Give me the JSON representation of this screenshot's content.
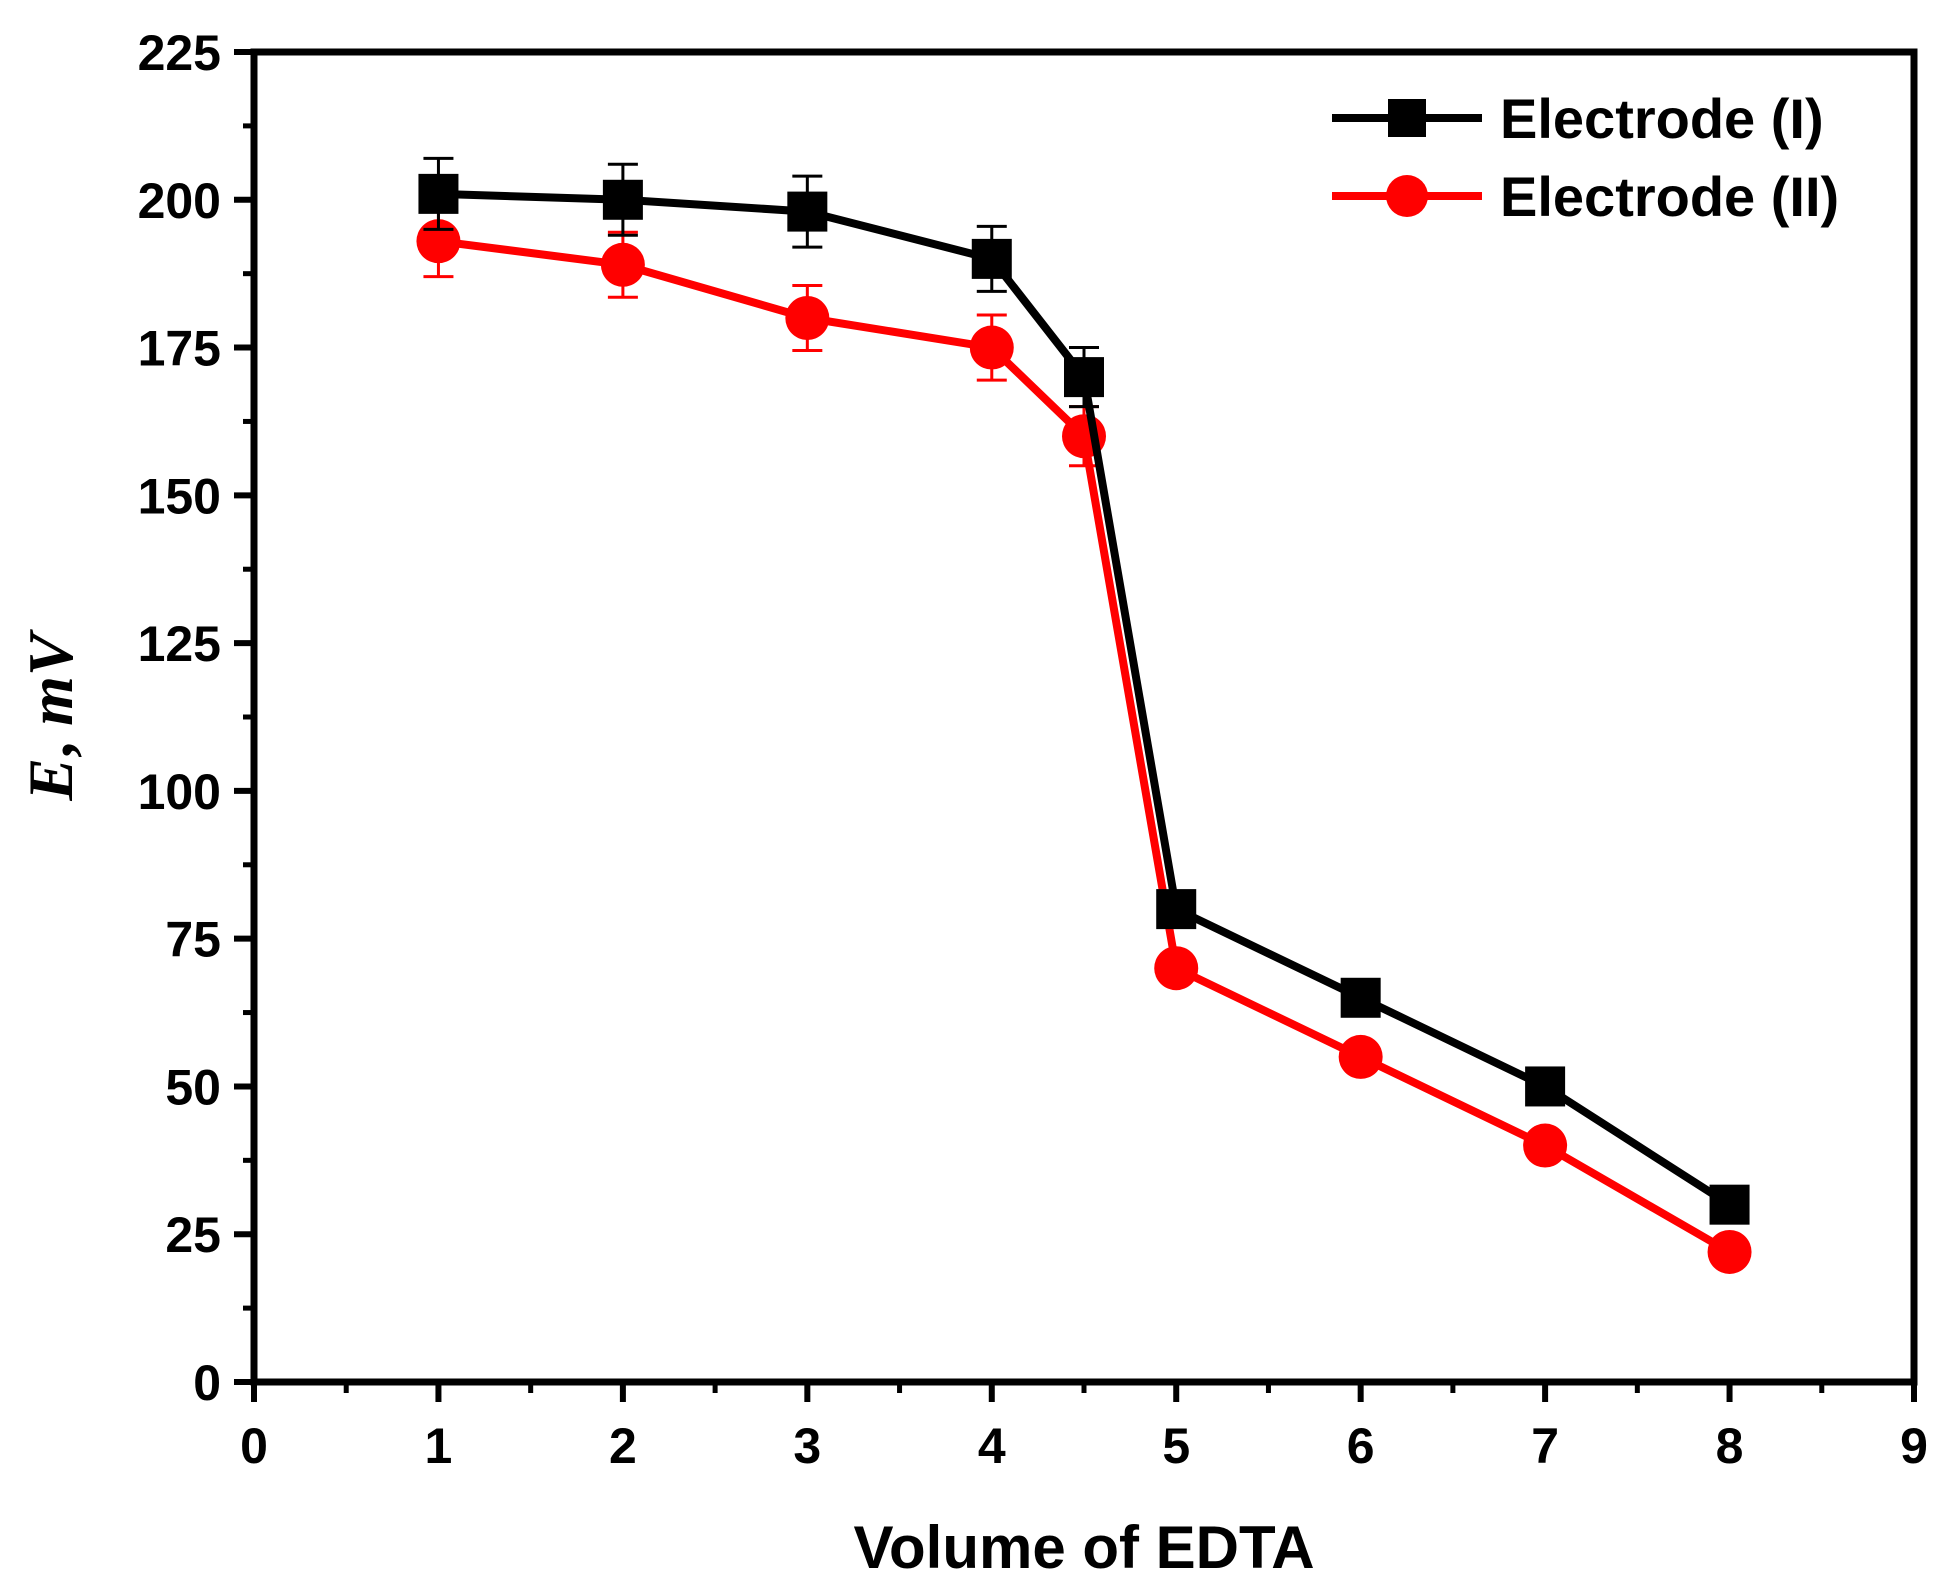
{
  "chart_data": {
    "type": "line",
    "title": "",
    "xlabel": "Volume of EDTA",
    "ylabel": "E, mV",
    "ylabel_parts": [
      "E",
      ", ",
      "mV"
    ],
    "xlim": [
      0,
      9
    ],
    "ylim": [
      0,
      225
    ],
    "xticks": [
      0,
      1,
      2,
      3,
      4,
      5,
      6,
      7,
      8,
      9
    ],
    "yticks": [
      0,
      25,
      50,
      75,
      100,
      125,
      150,
      175,
      200,
      225
    ],
    "legend_position": "top-right",
    "grid": false,
    "series": [
      {
        "name": "Electrode (I)",
        "color": "#000000",
        "marker": "square",
        "x": [
          1,
          2,
          3,
          4,
          4.5,
          5,
          6,
          7,
          8
        ],
        "values": [
          201,
          200,
          198,
          190,
          170,
          80,
          65,
          50,
          30
        ],
        "error": [
          6,
          6,
          6,
          5.5,
          5,
          0,
          0,
          0,
          0
        ]
      },
      {
        "name": "Electrode (II)",
        "color": "#ff0000",
        "marker": "circle",
        "x": [
          1,
          2,
          3,
          4,
          4.5,
          5,
          6,
          7,
          8
        ],
        "values": [
          193,
          189,
          180,
          175,
          160,
          70,
          55,
          40,
          22
        ],
        "error": [
          6,
          5.5,
          5.5,
          5.5,
          5,
          0,
          0,
          0,
          0
        ]
      }
    ]
  }
}
